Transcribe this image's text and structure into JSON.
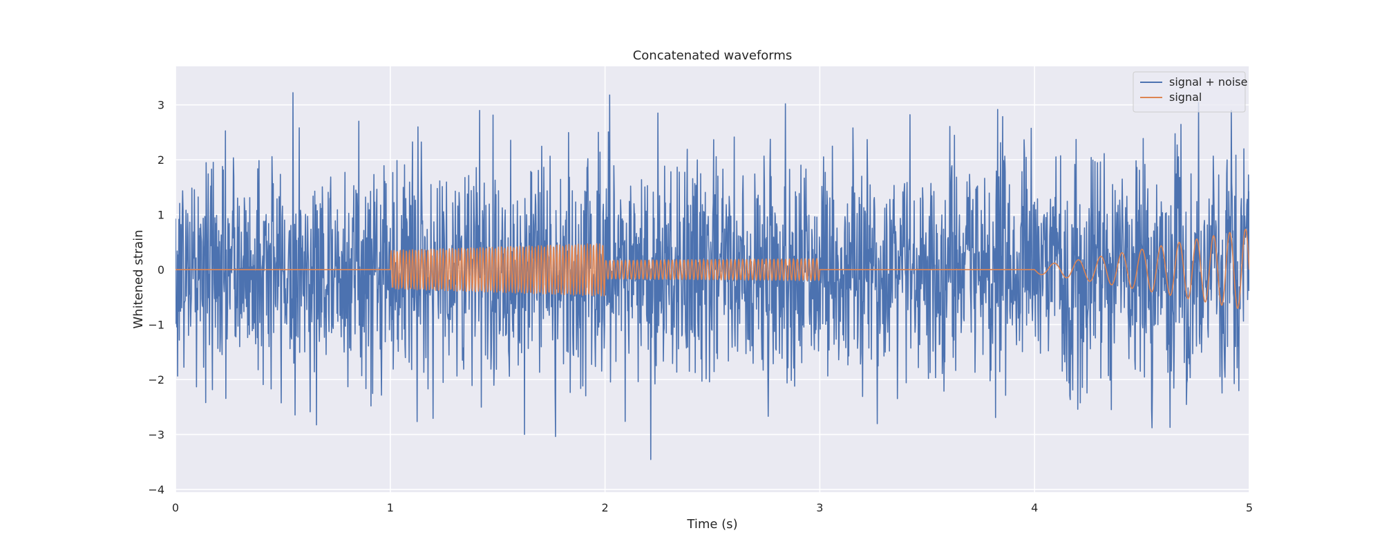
{
  "chart_data": {
    "type": "line",
    "title": "Concatenated waveforms",
    "xlabel": "Time (s)",
    "ylabel": "Whitened strain",
    "xlim": [
      0,
      5
    ],
    "ylim": [
      -4.05,
      3.7
    ],
    "xticks": [
      0,
      1,
      2,
      3,
      4,
      5
    ],
    "yticks": [
      -4,
      -3,
      -2,
      -1,
      0,
      1,
      2,
      3
    ],
    "grid": true,
    "legend_position": "top-right",
    "sample_rate_hz": 512,
    "series": [
      {
        "name": "signal + noise",
        "color": "#4c72b0",
        "description_of_values": "Gaussian noise, approx. standard deviation 1, plus the signal; extremes near 3.35 and -3.7"
      },
      {
        "name": "signal",
        "color": "#dd8452",
        "segments": [
          {
            "t_start": 0,
            "t_end": 1,
            "waveform": "zero",
            "amplitude": 0
          },
          {
            "t_start": 1,
            "t_end": 2,
            "waveform": "sine",
            "frequency_hz": 70,
            "amplitude_start": 0.35,
            "amplitude_end": 0.48
          },
          {
            "t_start": 2,
            "t_end": 3,
            "waveform": "sine",
            "frequency_hz": 55,
            "amplitude_start": 0.17,
            "amplitude_end": 0.2
          },
          {
            "t_start": 3,
            "t_end": 4,
            "waveform": "zero",
            "amplitude": 0
          },
          {
            "t_start": 4,
            "t_end": 5,
            "waveform": "chirp",
            "frequency_start_hz": 8,
            "frequency_end_hz": 14,
            "amplitude_start": 0.08,
            "amplitude_end": 0.75
          }
        ]
      }
    ]
  }
}
